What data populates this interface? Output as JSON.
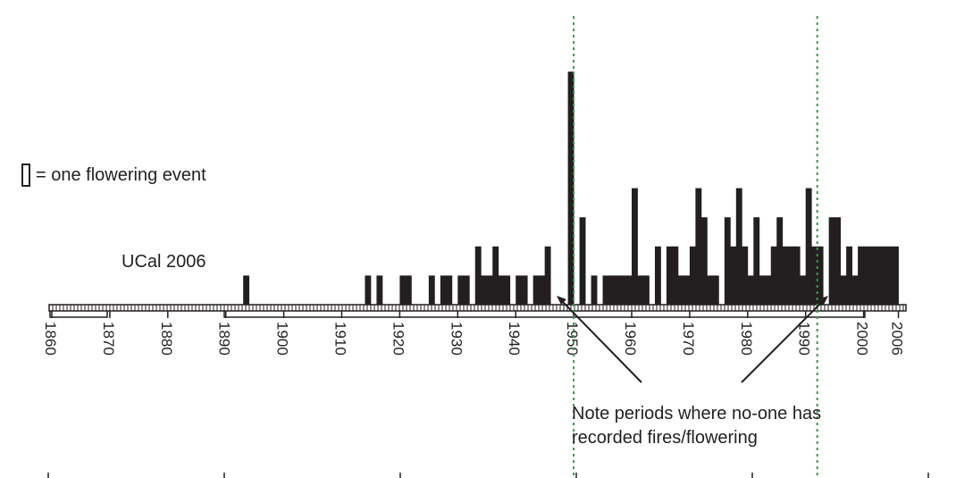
{
  "chart_data": {
    "type": "bar",
    "series_label": "UCal 2006",
    "legend": {
      "text": "= one flowering event"
    },
    "annotation": "Note periods where no-one has recorded fires/flowering",
    "xticks": [
      1860,
      1870,
      1880,
      1890,
      1900,
      1910,
      1920,
      1930,
      1940,
      1950,
      1960,
      1970,
      1980,
      1990,
      2000,
      2006
    ],
    "xlim": [
      1860,
      2006
    ],
    "ylim": [
      0,
      9
    ],
    "reference_lines": [
      1950,
      1992
    ],
    "series": [
      {
        "values": [
          {
            "x": 1893,
            "y": 1
          },
          {
            "x": 1914,
            "y": 1
          },
          {
            "x": 1916,
            "y": 1
          },
          {
            "x": 1920,
            "y": 1
          },
          {
            "x": 1921,
            "y": 1
          },
          {
            "x": 1925,
            "y": 1
          },
          {
            "x": 1927,
            "y": 1
          },
          {
            "x": 1928,
            "y": 1
          },
          {
            "x": 1930,
            "y": 1
          },
          {
            "x": 1931,
            "y": 1
          },
          {
            "x": 1933,
            "y": 2
          },
          {
            "x": 1934,
            "y": 1
          },
          {
            "x": 1935,
            "y": 1
          },
          {
            "x": 1936,
            "y": 2
          },
          {
            "x": 1937,
            "y": 1
          },
          {
            "x": 1938,
            "y": 1
          },
          {
            "x": 1940,
            "y": 1
          },
          {
            "x": 1941,
            "y": 1
          },
          {
            "x": 1943,
            "y": 1
          },
          {
            "x": 1944,
            "y": 1
          },
          {
            "x": 1945,
            "y": 2
          },
          {
            "x": 1949,
            "y": 8
          },
          {
            "x": 1951,
            "y": 3
          },
          {
            "x": 1953,
            "y": 1
          },
          {
            "x": 1955,
            "y": 1
          },
          {
            "x": 1956,
            "y": 1
          },
          {
            "x": 1957,
            "y": 1
          },
          {
            "x": 1958,
            "y": 1
          },
          {
            "x": 1959,
            "y": 1
          },
          {
            "x": 1960,
            "y": 4
          },
          {
            "x": 1961,
            "y": 1
          },
          {
            "x": 1962,
            "y": 1
          },
          {
            "x": 1964,
            "y": 2
          },
          {
            "x": 1966,
            "y": 2
          },
          {
            "x": 1967,
            "y": 2
          },
          {
            "x": 1968,
            "y": 1
          },
          {
            "x": 1969,
            "y": 1
          },
          {
            "x": 1970,
            "y": 2
          },
          {
            "x": 1971,
            "y": 4
          },
          {
            "x": 1972,
            "y": 3
          },
          {
            "x": 1973,
            "y": 1
          },
          {
            "x": 1974,
            "y": 1
          },
          {
            "x": 1976,
            "y": 3
          },
          {
            "x": 1977,
            "y": 2
          },
          {
            "x": 1978,
            "y": 4
          },
          {
            "x": 1979,
            "y": 2
          },
          {
            "x": 1980,
            "y": 1
          },
          {
            "x": 1981,
            "y": 3
          },
          {
            "x": 1982,
            "y": 1
          },
          {
            "x": 1983,
            "y": 1
          },
          {
            "x": 1984,
            "y": 2
          },
          {
            "x": 1985,
            "y": 3
          },
          {
            "x": 1986,
            "y": 2
          },
          {
            "x": 1987,
            "y": 2
          },
          {
            "x": 1988,
            "y": 2
          },
          {
            "x": 1989,
            "y": 1
          },
          {
            "x": 1990,
            "y": 4
          },
          {
            "x": 1991,
            "y": 2
          },
          {
            "x": 1992,
            "y": 2
          },
          {
            "x": 1994,
            "y": 3
          },
          {
            "x": 1995,
            "y": 3
          },
          {
            "x": 1996,
            "y": 1
          },
          {
            "x": 1997,
            "y": 2
          },
          {
            "x": 1998,
            "y": 1
          },
          {
            "x": 1999,
            "y": 2
          },
          {
            "x": 2000,
            "y": 2
          },
          {
            "x": 2001,
            "y": 2
          },
          {
            "x": 2002,
            "y": 2
          },
          {
            "x": 2003,
            "y": 2
          },
          {
            "x": 2004,
            "y": 2
          },
          {
            "x": 2005,
            "y": 2
          }
        ]
      }
    ]
  }
}
